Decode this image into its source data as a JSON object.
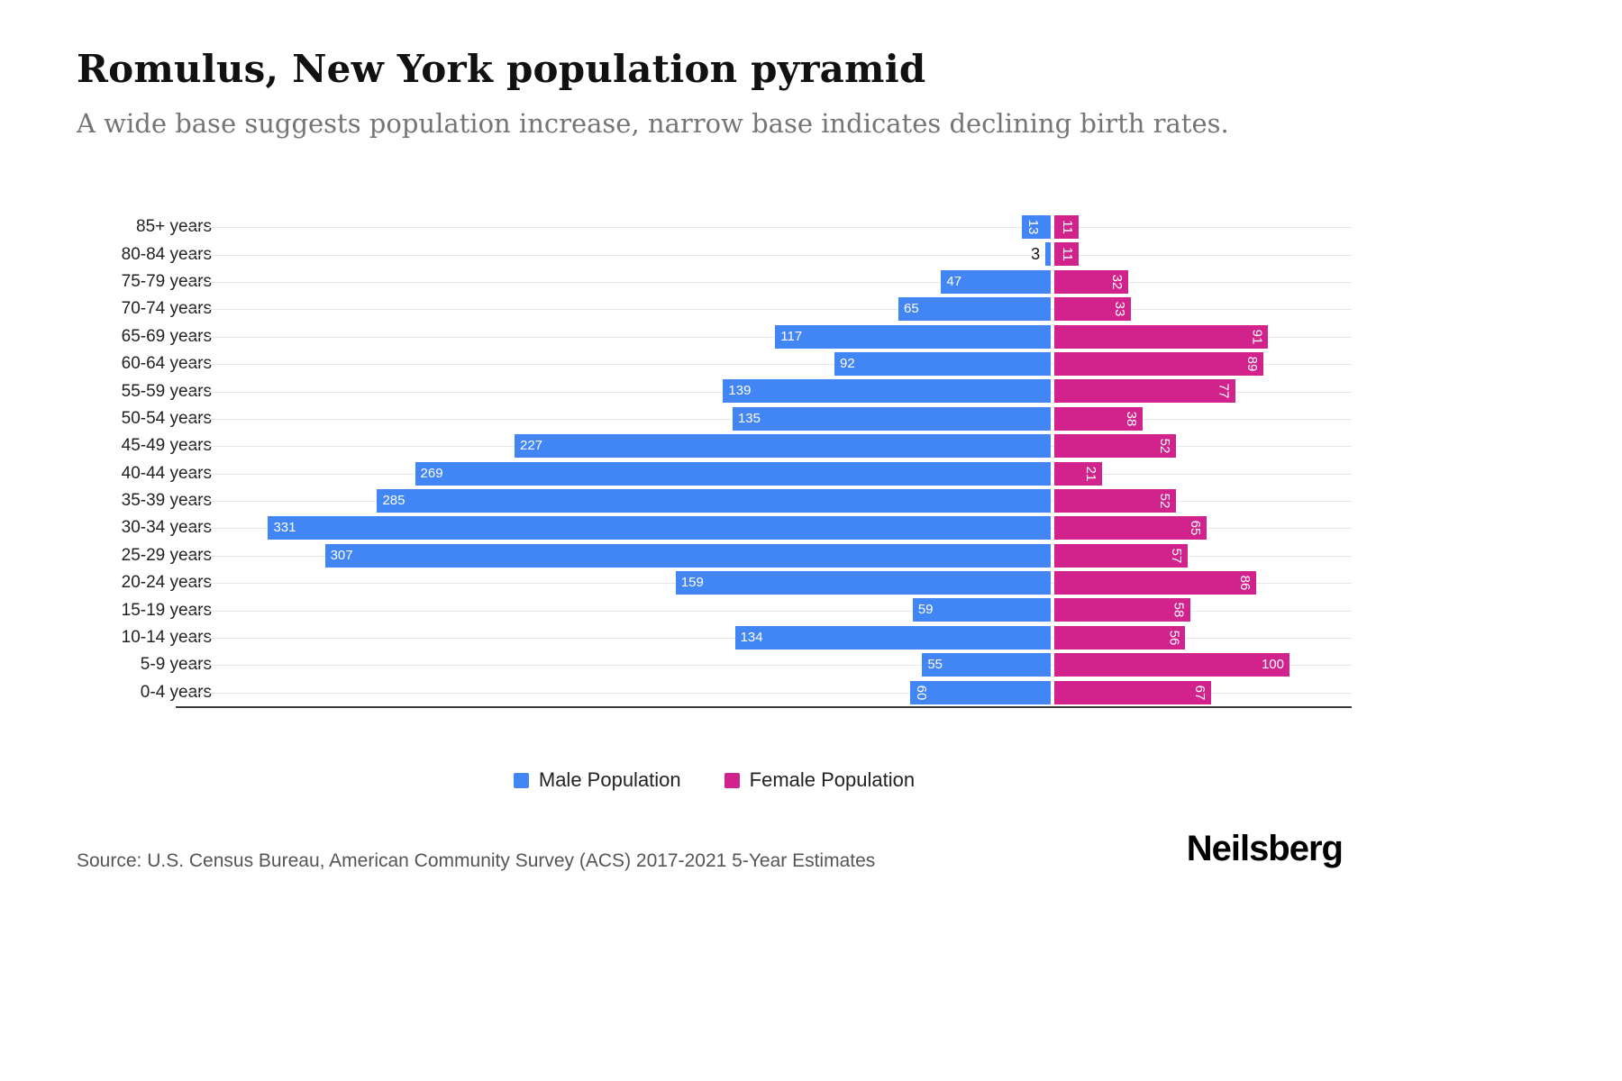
{
  "header": {
    "title": "Romulus, New York population pyramid",
    "subtitle": "A wide base suggests population increase, narrow base indicates declining birth rates."
  },
  "chart_data": {
    "type": "bar",
    "variant": "population-pyramid-diverging-horizontal",
    "title": "Romulus, New York population pyramid",
    "categories": [
      "85+ years",
      "80-84 years",
      "75-79 years",
      "70-74 years",
      "65-69 years",
      "60-64 years",
      "55-59 years",
      "50-54 years",
      "45-49 years",
      "40-44 years",
      "35-39 years",
      "30-34 years",
      "25-29 years",
      "20-24 years",
      "15-19 years",
      "10-14 years",
      "5-9 years",
      "0-4 years"
    ],
    "series": [
      {
        "name": "Male Population",
        "color": "#4285F4",
        "side": "left",
        "values": [
          13,
          3,
          47,
          65,
          117,
          92,
          139,
          135,
          227,
          269,
          285,
          331,
          307,
          159,
          59,
          134,
          55,
          60
        ],
        "label_orientation": [
          "v",
          "out",
          "h",
          "h",
          "h",
          "h",
          "h",
          "h",
          "h",
          "h",
          "h",
          "h",
          "h",
          "h",
          "h",
          "h",
          "h",
          "v"
        ]
      },
      {
        "name": "Female Population",
        "color": "#D2238C",
        "side": "right",
        "values": [
          11,
          11,
          32,
          33,
          91,
          89,
          77,
          38,
          52,
          21,
          52,
          65,
          57,
          86,
          58,
          56,
          100,
          67
        ],
        "label_orientation": [
          "v",
          "v",
          "v",
          "v",
          "v",
          "v",
          "v",
          "v",
          "v",
          "v",
          "v",
          "v",
          "v",
          "v",
          "v",
          "v",
          "h",
          "v"
        ]
      }
    ],
    "axis": {
      "male_max": 350,
      "female_max": 125,
      "center_value": 0
    },
    "grid": true,
    "legend_position": "bottom"
  },
  "legend": {
    "items": [
      {
        "label": "Male Population",
        "color": "#4285F4"
      },
      {
        "label": "Female Population",
        "color": "#D2238C"
      }
    ]
  },
  "footer": {
    "source": "Source: U.S. Census Bureau, American Community Survey (ACS) 2017-2021 5-Year Estimates",
    "brand": "Neilsberg"
  }
}
